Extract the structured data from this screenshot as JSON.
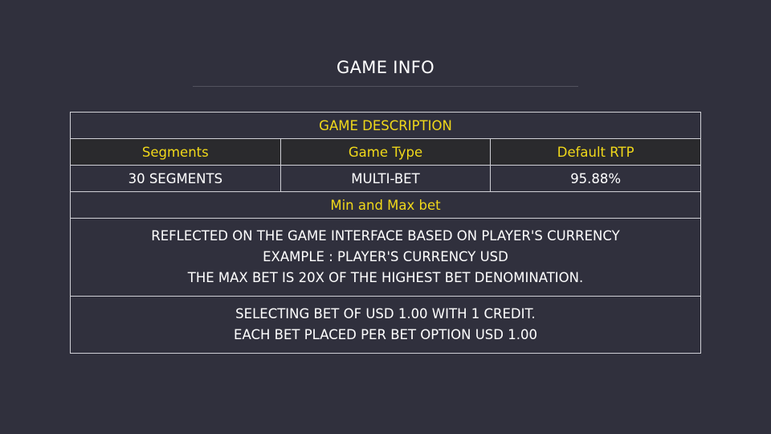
{
  "page": {
    "title": "GAME INFO"
  },
  "table": {
    "section_header": "GAME DESCRIPTION",
    "columns": [
      "Segments",
      "Game Type",
      "Default RTP"
    ],
    "values": [
      "30 SEGMENTS",
      "MULTI-BET",
      "95.88%"
    ],
    "bet_header": "Min and Max bet",
    "bet_block_1": [
      "REFLECTED ON THE GAME INTERFACE BASED ON PLAYER'S CURRENCY",
      "EXAMPLE : PLAYER'S CURRENCY USD",
      "THE MAX BET IS 20X OF THE HIGHEST BET DENOMINATION."
    ],
    "bet_block_2": [
      "SELECTING BET OF USD 1.00 WITH 1 CREDIT.",
      "EACH BET PLACED PER BET OPTION USD 1.00"
    ]
  },
  "colors": {
    "background": "#30303d",
    "accent_yellow": "#f0d81a",
    "border": "#d0d0d6",
    "header_row_bg": "#2a2a2d"
  }
}
